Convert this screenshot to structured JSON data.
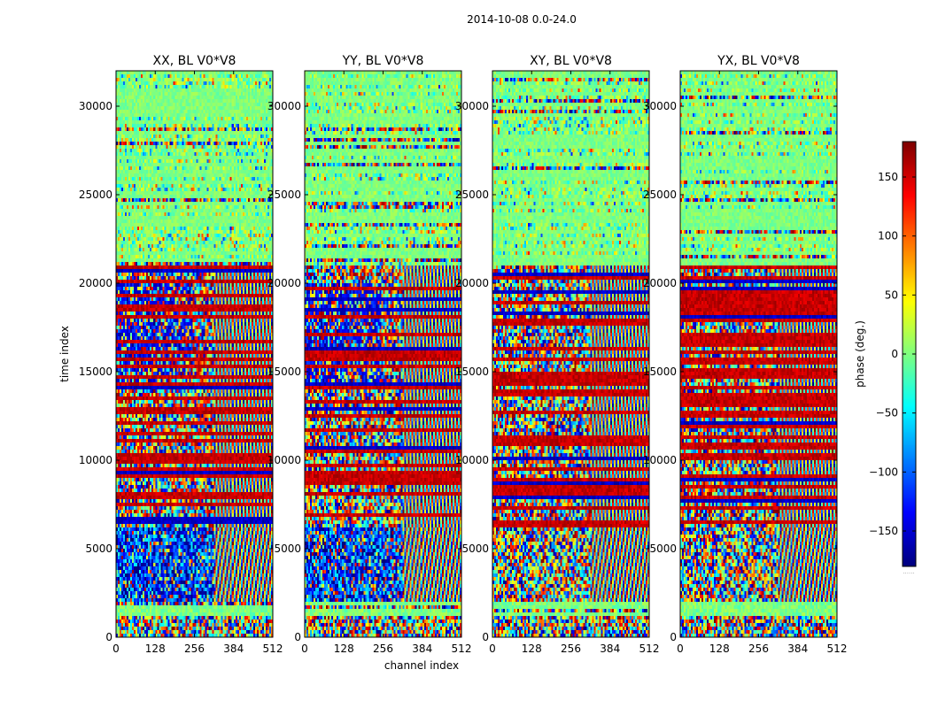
{
  "figure": {
    "suptitle": "2014-10-08 0.0-24.0",
    "xlabel": "channel index",
    "ylabel": "time index"
  },
  "colorbar": {
    "label": "phase (deg.)",
    "range": [
      -180,
      180
    ],
    "ticks": [
      -150,
      -100,
      -50,
      0,
      50,
      100,
      150
    ],
    "tick_labels": [
      "−150",
      "−100",
      "−50",
      "0",
      "50",
      "100",
      "150"
    ],
    "colormap": [
      "#00007f",
      "#0000ff",
      "#007fff",
      "#00ffff",
      "#7fff7f",
      "#ffff00",
      "#ff7f00",
      "#ff0000",
      "#7f0000"
    ],
    "footer": "......"
  },
  "chart_data": {
    "type": "heatmap",
    "value_label": "phase (deg.)",
    "value_range": [
      -180,
      180
    ],
    "x_range": [
      0,
      512
    ],
    "y_range": [
      0,
      32000
    ],
    "x_ticks": [
      0,
      128,
      256,
      384,
      512
    ],
    "x_tick_labels": [
      "0",
      "128",
      "256",
      "384",
      "512"
    ],
    "y_ticks": [
      0,
      5000,
      10000,
      15000,
      20000,
      25000,
      30000
    ],
    "y_tick_labels": [
      "0",
      "5000",
      "10000",
      "15000",
      "20000",
      "25000",
      "30000"
    ],
    "panels": [
      {
        "title": "XX, BL V0*V8",
        "polarization": "XX",
        "baseline": "V0*V8"
      },
      {
        "title": "YY, BL V0*V8",
        "polarization": "YY",
        "baseline": "V0*V8"
      },
      {
        "title": "XY, BL V0*V8",
        "polarization": "XY",
        "baseline": "V0*V8"
      },
      {
        "title": "YX, BL V0*V8",
        "polarization": "YX",
        "baseline": "V0*V8"
      }
    ],
    "regions": [
      {
        "t_start": 0,
        "t_end": 1300,
        "character": "noisy"
      },
      {
        "t_start": 1300,
        "t_end": 2000,
        "character": "near-zero phase band"
      },
      {
        "t_start": 2000,
        "t_end": 6300,
        "character": "noisy (blue-dominant in XX/YY), fringe stripes at high channels"
      },
      {
        "t_start": 6300,
        "t_end": 21000,
        "character": "dense horizontal stripes, red-dominant"
      },
      {
        "t_start": 21000,
        "t_end": 32000,
        "character": "mostly near-zero phase (green) with scattered stripes"
      }
    ]
  }
}
